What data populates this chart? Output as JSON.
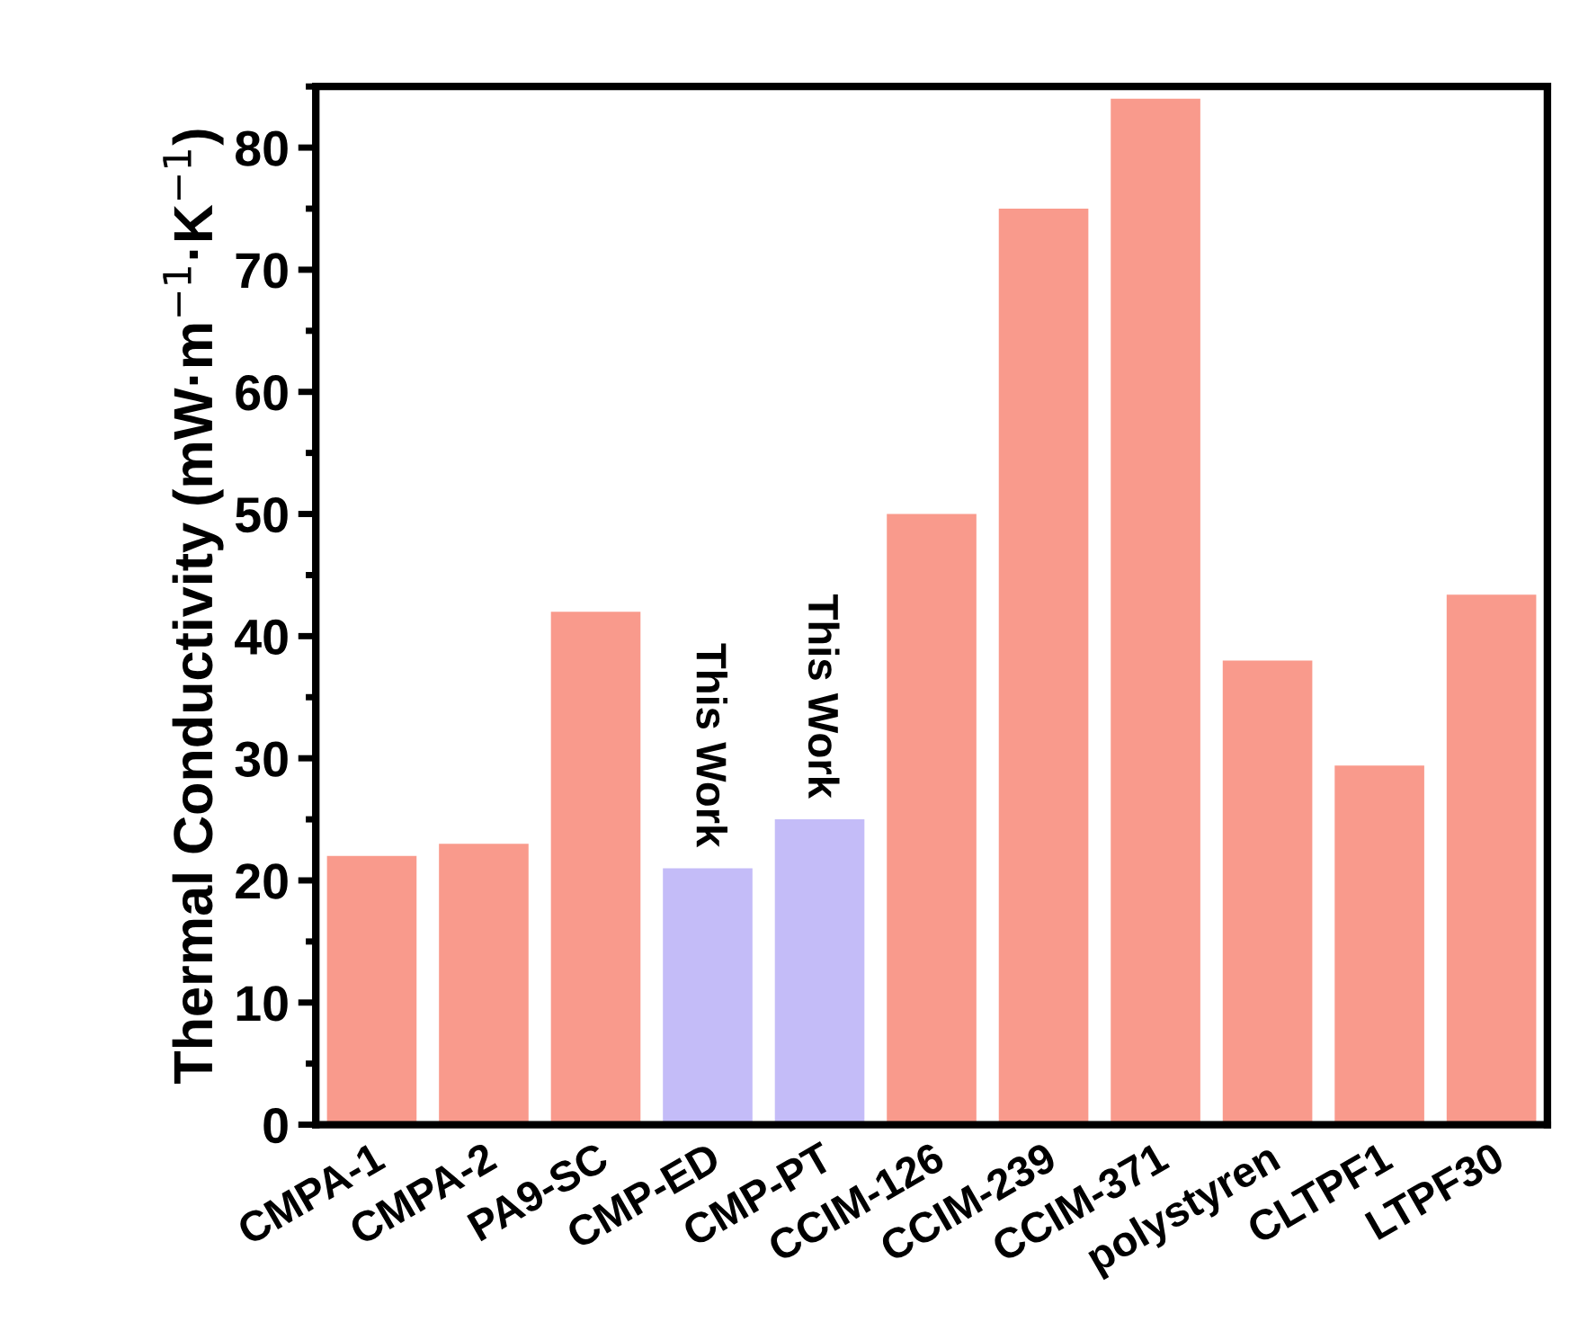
{
  "chart_data": {
    "type": "bar",
    "ylabel": "Thermal Conductivity (mW·m$^{−1}$·K$^{−1}$)",
    "categories": [
      "CMPA-1",
      "CMPA-2",
      "PA9-SC",
      "CMP-ED",
      "CMP-PT",
      "CCIM-126",
      "CCIM-239",
      "CCIM-371",
      "polystyren",
      "CLTPF1",
      "LTPF30"
    ],
    "values": [
      22,
      23,
      42,
      21,
      25,
      50,
      75,
      84,
      38,
      29.4,
      43.4
    ],
    "colors": [
      "#f99a8c",
      "#f99a8c",
      "#f99a8c",
      "#c4bcf8",
      "#c4bcf8",
      "#f99a8c",
      "#f99a8c",
      "#f99a8c",
      "#f99a8c",
      "#f99a8c",
      "#f99a8c"
    ],
    "ylim": [
      0,
      85
    ],
    "yticks": [
      0,
      10,
      20,
      30,
      40,
      50,
      60,
      70,
      80
    ],
    "annotations": [
      {
        "text": "This Work",
        "x": "CMP-ED",
        "y": 21
      },
      {
        "text": "This Work",
        "x": "CMP-PT",
        "y": 25
      }
    ],
    "grid": false,
    "legend": false
  }
}
